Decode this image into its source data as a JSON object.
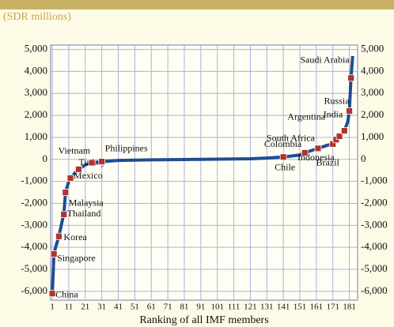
{
  "chart_data": {
    "type": "line",
    "subtitle": "(SDR millions)",
    "xlabel": "Ranking of all IMF members",
    "x": [
      1,
      2,
      3,
      5,
      7,
      8,
      9,
      11,
      12,
      15,
      17,
      21,
      25,
      31,
      41,
      61,
      91,
      121,
      131,
      141,
      151,
      154,
      158,
      162,
      168,
      171,
      173,
      175,
      178,
      180,
      181,
      182,
      183
    ],
    "series": [
      {
        "color": "#1f4c97",
        "values": [
          -6100,
          -4300,
          -4000,
          -3500,
          -2800,
          -2500,
          -1500,
          -1000,
          -850,
          -600,
          -450,
          -250,
          -150,
          -100,
          -50,
          -20,
          0,
          30,
          60,
          110,
          200,
          300,
          400,
          500,
          650,
          700,
          900,
          1050,
          1300,
          1700,
          2200,
          3700,
          4700
        ]
      }
    ],
    "points": [
      {
        "label": "China",
        "x": 1,
        "y": -6100
      },
      {
        "label": "Singapore",
        "x": 2,
        "y": -4300
      },
      {
        "label": "Korea",
        "x": 5,
        "y": -3500
      },
      {
        "label": "Thailand",
        "x": 8,
        "y": -2500
      },
      {
        "label": "Malaysia",
        "x": 9,
        "y": -1500
      },
      {
        "label": "Mexico",
        "x": 12,
        "y": -850
      },
      {
        "label": "Turkey",
        "x": 17,
        "y": -450
      },
      {
        "label": "Vietnam",
        "x": 25,
        "y": -150
      },
      {
        "label": "Philippines",
        "x": 31,
        "y": -100
      },
      {
        "label": "Chile",
        "x": 141,
        "y": 110
      },
      {
        "label": "Colombia",
        "x": 154,
        "y": 300
      },
      {
        "label": "South Africa",
        "x": 162,
        "y": 500
      },
      {
        "label": "Indonesia",
        "x": 171,
        "y": 700
      },
      {
        "label": "Brazil",
        "x": 173,
        "y": 900
      },
      {
        "label": "Argentina",
        "x": 175,
        "y": 1050
      },
      {
        "label": "India",
        "x": 178,
        "y": 1300
      },
      {
        "label": "Russia",
        "x": 181,
        "y": 2200
      },
      {
        "label": "Saudi Arabia",
        "x": 182,
        "y": 3700
      }
    ],
    "point_color": "#b0342c",
    "xlim": [
      0,
      186
    ],
    "xticks": [
      1,
      11,
      21,
      31,
      41,
      51,
      61,
      71,
      81,
      91,
      101,
      111,
      121,
      131,
      141,
      151,
      161,
      171,
      181
    ],
    "ylim": [
      -6400,
      5200
    ],
    "yticks": [
      {
        "value": 5000,
        "label": "5,000"
      },
      {
        "value": 4000,
        "label": "4,000"
      },
      {
        "value": 3000,
        "label": "3,000"
      },
      {
        "value": 2000,
        "label": "2,000"
      },
      {
        "value": 1000,
        "label": "1,000"
      },
      0,
      {
        "value": -1000,
        "label": "-1,000"
      },
      {
        "value": -2000,
        "label": "-2,000"
      },
      {
        "value": -3000,
        "label": "-3,000"
      },
      {
        "value": -4000,
        "label": "-4,000"
      },
      {
        "value": -5000,
        "label": "-5,000"
      },
      {
        "value": -6000,
        "label": "-6,000"
      }
    ],
    "grid": true
  }
}
